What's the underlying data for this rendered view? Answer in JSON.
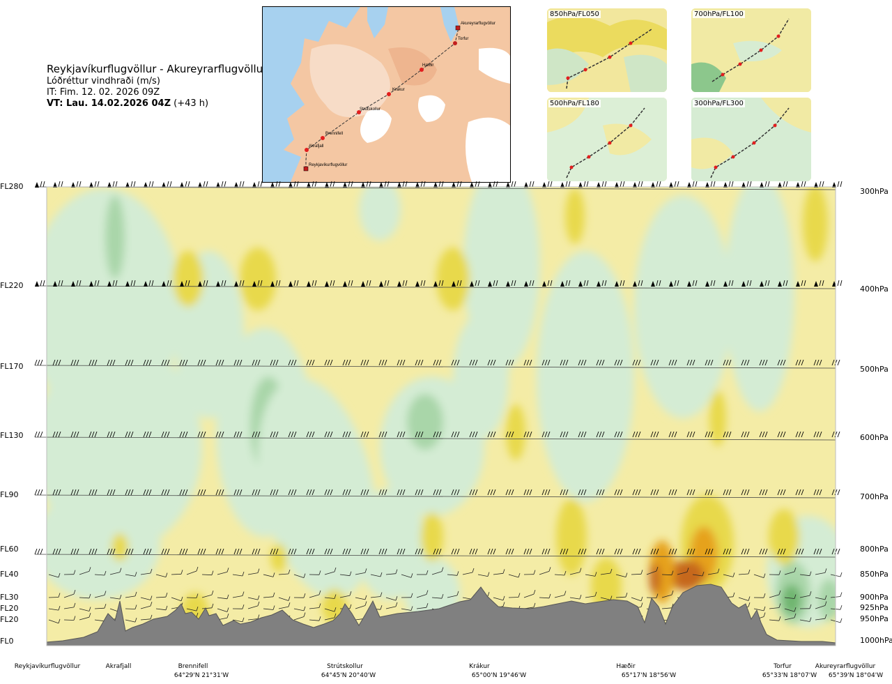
{
  "header": {
    "route": "Reykjavíkurflugvöllur - Akureyrarflugvöllur",
    "variable": "Lóðréttur vindhraði (m/s)",
    "issue_time": "IT: Fim. 12. 02. 2026 09Z",
    "valid_prefix": "VT: Lau. 14.02.2026 04Z",
    "valid_suffix": "(+43 h)"
  },
  "map": {
    "places": [
      "Akureyrarflugvöllur",
      "Torfur",
      "Hæðir",
      "Krákur",
      "Strútskollur",
      "Brennifell",
      "Akrafjall",
      "Reykjavíkurflugvöllur"
    ]
  },
  "mini_maps": [
    {
      "label": "850hPa/FL050"
    },
    {
      "label": "700hPa/FL100"
    },
    {
      "label": "500hPa/FL180"
    },
    {
      "label": "300hPa/FL300"
    }
  ],
  "chart_data": {
    "type": "heatmap",
    "title": "Reykjavíkurflugvöllur - Akureyrarflugvöllur",
    "subtitle": "Lóðréttur vindhraði (m/s)",
    "levels": [
      {
        "fl": "FL280",
        "hpa": "300hPa"
      },
      {
        "fl": "FL220",
        "hpa": "400hPa"
      },
      {
        "fl": "FL170",
        "hpa": "500hPa"
      },
      {
        "fl": "FL130",
        "hpa": "600hPa"
      },
      {
        "fl": "FL90",
        "hpa": "700hPa"
      },
      {
        "fl": "FL60",
        "hpa": "800hPa"
      },
      {
        "fl": "FL40",
        "hpa": "850hPa"
      },
      {
        "fl": "FL30",
        "hpa": "900hPa"
      },
      {
        "fl": "FL20",
        "hpa": "925hPa"
      },
      {
        "fl": "FL20",
        "hpa": "950hPa"
      },
      {
        "fl": "FL0",
        "hpa": "1000hPa"
      }
    ],
    "locations": [
      {
        "name": "Reykjavíkurflugvöllur",
        "coord": ""
      },
      {
        "name": "Akrafjall",
        "coord": ""
      },
      {
        "name": "Brennifell",
        "coord": "64°29'N 21°31'W"
      },
      {
        "name": "Strútskollur",
        "coord": "64°45'N 20°40'W"
      },
      {
        "name": "Krákur",
        "coord": "65°00'N 19°46'W"
      },
      {
        "name": "Hæðir",
        "coord": "65°17'N 18°56'W"
      },
      {
        "name": "Torfur",
        "coord": "65°33'N 18°07'W"
      },
      {
        "name": "Akureyrarflugvöllur",
        "coord": "65°39'N 18°04'W"
      }
    ],
    "colors": {
      "strong_down": "#6fb56f",
      "down": "#a9d6a9",
      "weak_down": "#d4ecd4",
      "neutral": "#fbfbe6",
      "weak_up": "#f4eca6",
      "up": "#e8d94b",
      "strong_up": "#e6a21f",
      "very_strong_up": "#c6671a",
      "terrain": "#808080"
    }
  }
}
